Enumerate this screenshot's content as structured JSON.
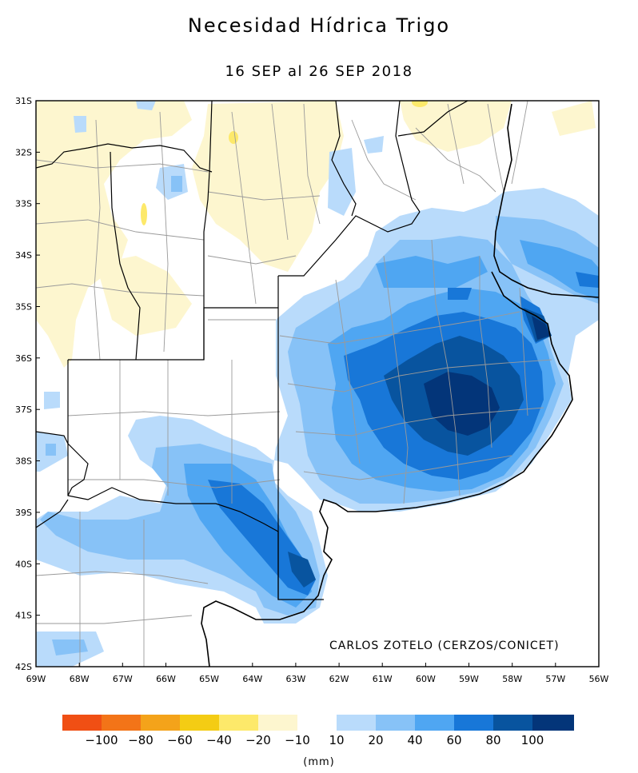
{
  "title": "Necesidad Hídrica Trigo",
  "subtitle": "16 SEP al 26 SEP 2018",
  "credit": "CARLOS ZOTELO (CERZOS/CONICET)",
  "units": "(mm)",
  "map": {
    "lat_labels": [
      "31S",
      "32S",
      "33S",
      "34S",
      "35S",
      "36S",
      "37S",
      "38S",
      "39S",
      "40S",
      "41S",
      "42S"
    ],
    "lon_labels": [
      "69W",
      "68W",
      "67W",
      "66W",
      "65W",
      "64W",
      "63W",
      "62W",
      "61W",
      "60W",
      "59W",
      "58W",
      "57W",
      "56W"
    ]
  },
  "legend": {
    "colors": [
      "#f04f14",
      "#f37418",
      "#f4a31a",
      "#f4cc14",
      "#fde96a",
      "#fdf6cf",
      "#ffffff",
      "#b9dbfb",
      "#87c2f7",
      "#4fa6f2",
      "#1877d8",
      "#08549f",
      "#033579"
    ],
    "labels": [
      "−100",
      "−80",
      "−60",
      "−40",
      "−20",
      "−10",
      "10",
      "20",
      "40",
      "60",
      "80",
      "100"
    ]
  }
}
